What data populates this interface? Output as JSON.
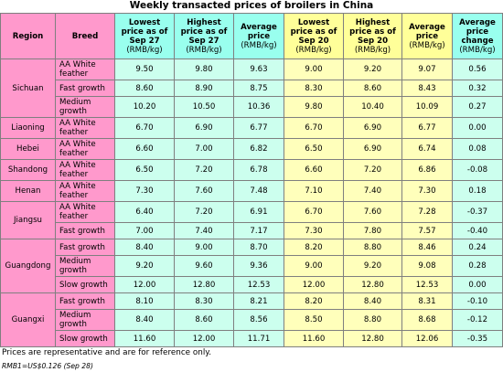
{
  "title": "Weekly transacted prices of broilers in China",
  "headers": {
    "region": "Region",
    "breed": "Breed",
    "low27": "Lowest price as of Sep 27",
    "low27_unit": "(RMB/kg)",
    "high27": "Highest price as of Sep 27",
    "high27_unit": "(RMB/kg)",
    "avg27": "Average price",
    "avg27_unit": "(RMB/kg)",
    "low20": "Lowest price as of Sep 20",
    "low20_unit": "(RMB/kg)",
    "high20": "Highest price as of Sep 20",
    "high20_unit": "(RMB/kg)",
    "avg20": "Average price",
    "avg20_unit": "(RMB/kg)",
    "change": "Average price change",
    "change_unit": "(RMB/kg)"
  },
  "rows": [
    {
      "region": "Sichuan",
      "breed": "AA White feather",
      "v": [
        "9.50",
        "9.80",
        "9.63",
        "9.00",
        "9.20",
        "9.07",
        "0.56"
      ]
    },
    {
      "region": "",
      "breed": "Fast growth",
      "v": [
        "8.60",
        "8.90",
        "8.75",
        "8.30",
        "8.60",
        "8.43",
        "0.32"
      ]
    },
    {
      "region": "",
      "breed": "Medium growth",
      "v": [
        "10.20",
        "10.50",
        "10.36",
        "9.80",
        "10.40",
        "10.09",
        "0.27"
      ]
    },
    {
      "region": "Liaoning",
      "breed": "AA White feather",
      "v": [
        "6.70",
        "6.90",
        "6.77",
        "6.70",
        "6.90",
        "6.77",
        "0.00"
      ]
    },
    {
      "region": "Hebei",
      "breed": "AA White feather",
      "v": [
        "6.60",
        "7.00",
        "6.82",
        "6.50",
        "6.90",
        "6.74",
        "0.08"
      ]
    },
    {
      "region": "Shandong",
      "breed": "AA White feather",
      "v": [
        "6.50",
        "7.20",
        "6.78",
        "6.60",
        "7.20",
        "6.86",
        "-0.08"
      ]
    },
    {
      "region": "Henan",
      "breed": "AA White feather",
      "v": [
        "7.30",
        "7.60",
        "7.48",
        "7.10",
        "7.40",
        "7.30",
        "0.18"
      ]
    },
    {
      "region": "Jiangsu",
      "breed": "AA White feather",
      "v": [
        "6.40",
        "7.20",
        "6.91",
        "6.70",
        "7.60",
        "7.28",
        "-0.37"
      ]
    },
    {
      "region": "",
      "breed": "Fast growth",
      "v": [
        "7.00",
        "7.40",
        "7.17",
        "7.30",
        "7.80",
        "7.57",
        "-0.40"
      ]
    },
    {
      "region": "Guangdong",
      "breed": "Fast growth",
      "v": [
        "8.40",
        "9.00",
        "8.70",
        "8.20",
        "8.80",
        "8.46",
        "0.24"
      ]
    },
    {
      "region": "",
      "breed": "Medium growth",
      "v": [
        "9.20",
        "9.60",
        "9.36",
        "9.00",
        "9.20",
        "9.08",
        "0.28"
      ]
    },
    {
      "region": "",
      "breed": "Slow growth",
      "v": [
        "12.00",
        "12.80",
        "12.53",
        "12.00",
        "12.80",
        "12.53",
        "0.00"
      ]
    },
    {
      "region": "Guangxi",
      "breed": "Fast growth",
      "v": [
        "8.10",
        "8.30",
        "8.21",
        "8.20",
        "8.40",
        "8.31",
        "-0.10"
      ]
    },
    {
      "region": "",
      "breed": "Medium growth",
      "v": [
        "8.40",
        "8.60",
        "8.56",
        "8.50",
        "8.80",
        "8.68",
        "-0.12"
      ]
    },
    {
      "region": "",
      "breed": "Slow growth",
      "v": [
        "11.60",
        "12.00",
        "11.71",
        "11.60",
        "12.80",
        "12.06",
        "-0.35"
      ]
    }
  ],
  "note": "Prices are representative and are for reference only.",
  "rate": "RMB1=US$0.126 (Sep 28)"
}
